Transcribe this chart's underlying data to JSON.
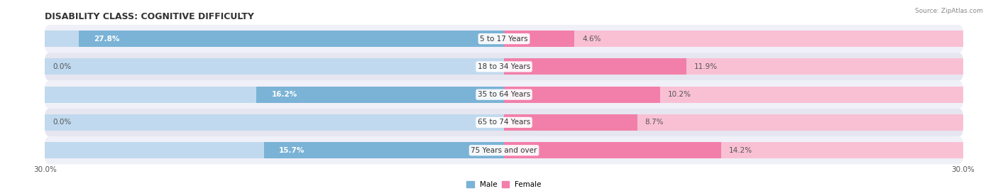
{
  "title": "DISABILITY CLASS: COGNITIVE DIFFICULTY",
  "source": "Source: ZipAtlas.com",
  "categories": [
    "5 to 17 Years",
    "18 to 34 Years",
    "35 to 64 Years",
    "65 to 74 Years",
    "75 Years and over"
  ],
  "male_values": [
    27.8,
    0.0,
    16.2,
    0.0,
    15.7
  ],
  "female_values": [
    4.6,
    11.9,
    10.2,
    8.7,
    14.2
  ],
  "x_max": 30.0,
  "male_color": "#7ab3d6",
  "female_color": "#f27faa",
  "male_color_light": "#c0d9ee",
  "female_color_light": "#f9c0d4",
  "bar_height": 0.58,
  "title_fontsize": 9,
  "label_fontsize": 7.5,
  "tick_fontsize": 7.5,
  "row_bg_even": "#f0f0f8",
  "row_bg_odd": "#e6e6f0",
  "text_color_white": "#ffffff",
  "text_color_dark": "#555555",
  "center_label_bg": "#ffffff"
}
